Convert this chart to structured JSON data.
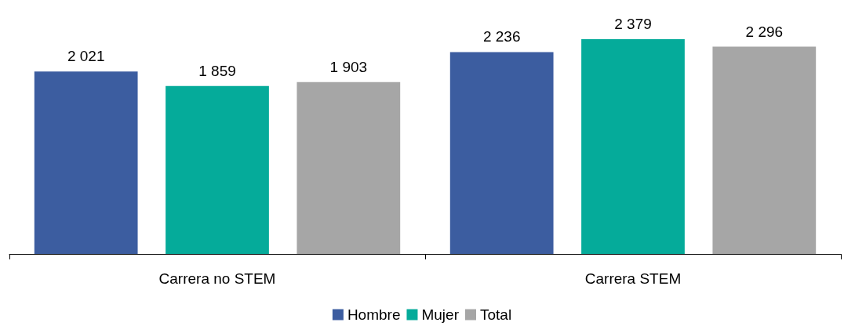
{
  "chart_data": {
    "type": "bar",
    "categories": [
      "Carrera no STEM",
      "Carrera STEM"
    ],
    "series": [
      {
        "name": "Hombre",
        "color": "#3c5da0",
        "values": [
          2021,
          2236
        ],
        "value_labels": [
          "2 021",
          "2 236"
        ]
      },
      {
        "name": "Mujer",
        "color": "#05ab9a",
        "values": [
          1859,
          2379
        ],
        "value_labels": [
          "1 859",
          "2 379"
        ]
      },
      {
        "name": "Total",
        "color": "#a6a6a6",
        "values": [
          1903,
          2296
        ],
        "value_labels": [
          "1 903",
          "2 296"
        ]
      }
    ],
    "legend": "bottom"
  }
}
